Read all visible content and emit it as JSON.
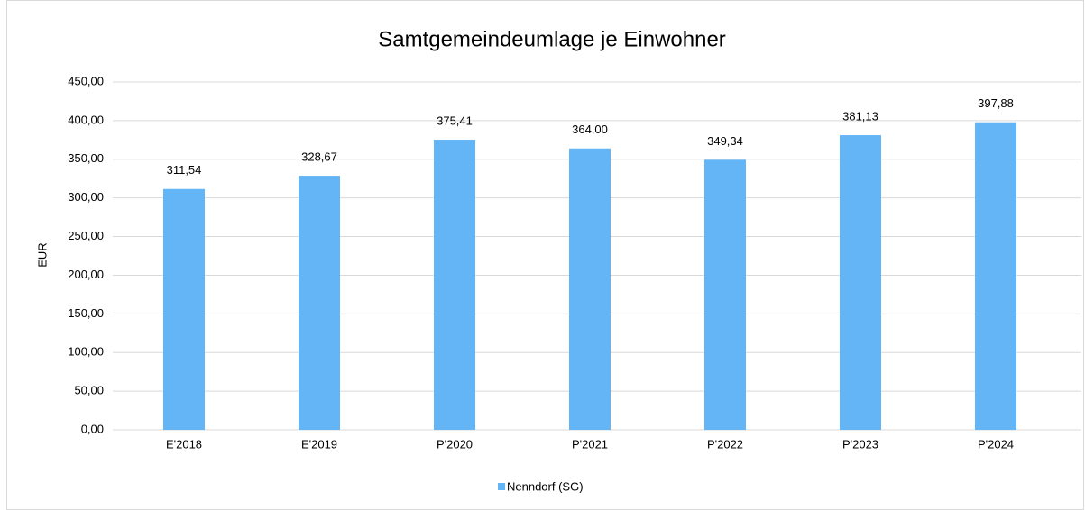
{
  "chart_data": {
    "type": "bar",
    "title": "Samtgemeindeumlage je Einwohner",
    "y_label": "EUR",
    "categories": [
      "E'2018",
      "E'2019",
      "P'2020",
      "P'2021",
      "P'2022",
      "P'2023",
      "P'2024"
    ],
    "series": [
      {
        "name": "Nenndorf (SG)",
        "color": "#64b5f6",
        "values": [
          311.54,
          328.67,
          375.41,
          364.0,
          349.34,
          381.13,
          397.88
        ],
        "value_labels": [
          "311,54",
          "328,67",
          "375,41",
          "364,00",
          "349,34",
          "381,13",
          "397,88"
        ]
      }
    ],
    "ylim": [
      0,
      450
    ],
    "yticks": [
      {
        "value": 0,
        "label": "0,00"
      },
      {
        "value": 50,
        "label": "50,00"
      },
      {
        "value": 100,
        "label": "100,00"
      },
      {
        "value": 150,
        "label": "150,00"
      },
      {
        "value": 200,
        "label": "200,00"
      },
      {
        "value": 250,
        "label": "250,00"
      },
      {
        "value": 300,
        "label": "300,00"
      },
      {
        "value": 350,
        "label": "350,00"
      },
      {
        "value": 400,
        "label": "400,00"
      },
      {
        "value": 450,
        "label": "450,00"
      }
    ],
    "grid": true,
    "legend": "bottom"
  }
}
